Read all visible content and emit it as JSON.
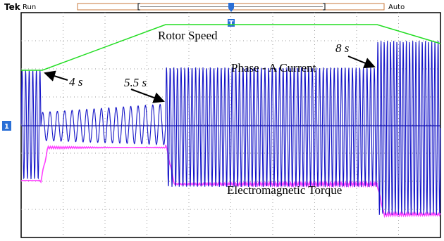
{
  "header": {
    "brand": "Tek",
    "state": "Run",
    "mode": "Auto",
    "trigger": "T"
  },
  "channel": "1",
  "annotations": {
    "rotor_speed": "Rotor Speed",
    "phase_current": "Phase - A Current",
    "torque": "Electromagnetic Torque",
    "time_1": "4 s",
    "time_2": "5.5 s",
    "time_3": "8 s"
  }
}
